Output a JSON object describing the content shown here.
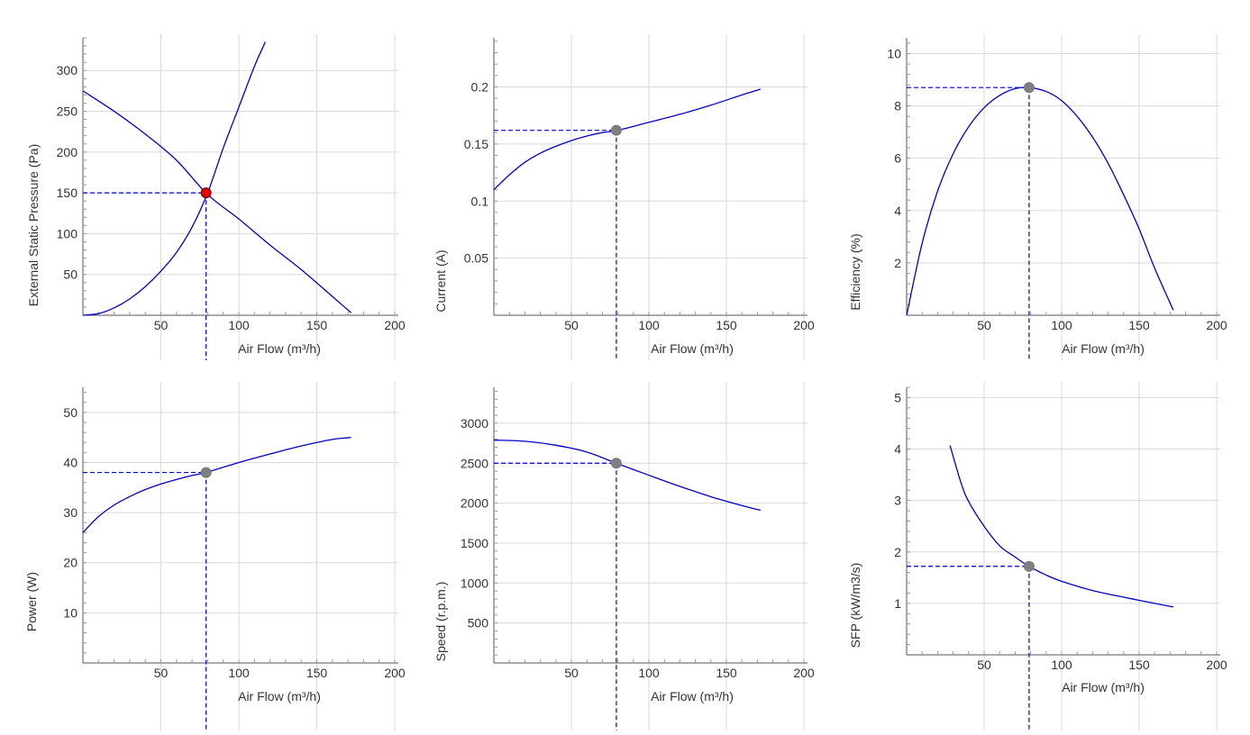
{
  "colors": {
    "curve": "#0000cc",
    "guide": "#0000cc",
    "grid": "#d9d9d9",
    "axis": "#555555",
    "operating_point_primary": "#e60000",
    "operating_point": "#7f7f7f"
  },
  "chart_data": [
    {
      "type": "line",
      "xlabel": "Air Flow (m³/h)",
      "ylabel": "External Static Pressure (Pa)",
      "xlim": [
        0,
        200
      ],
      "ylim": [
        0,
        340
      ],
      "xticks": [
        50,
        100,
        150,
        200
      ],
      "yticks": [
        50,
        100,
        150,
        200,
        250,
        300
      ],
      "x_tick_labels": [
        "50",
        "100",
        "150",
        "200"
      ],
      "y_tick_labels": [
        "50",
        "100",
        "150",
        "200",
        "250",
        "300"
      ],
      "grid": true,
      "series": [
        {
          "x": [
            0,
            20,
            40,
            60,
            80,
            100,
            120,
            140,
            160,
            172
          ],
          "values": [
            275,
            250,
            222,
            190,
            148,
            118,
            86,
            56,
            23,
            3
          ]
        },
        {
          "x": [
            0,
            10,
            20,
            30,
            40,
            50,
            60,
            70,
            80,
            90,
            100,
            110,
            117
          ],
          "values": [
            0,
            2,
            9,
            20,
            35,
            54,
            77,
            108,
            150,
            205,
            255,
            305,
            335
          ]
        }
      ],
      "operating_point": {
        "x": 79,
        "y": 150
      }
    },
    {
      "type": "line",
      "xlabel": "Air Flow (m³/h)",
      "ylabel": "Current (A)",
      "xlim": [
        0,
        200
      ],
      "ylim": [
        0,
        0.243
      ],
      "xticks": [
        50,
        100,
        150,
        200
      ],
      "yticks": [
        0.05,
        0.1,
        0.15,
        0.2
      ],
      "x_tick_labels": [
        "50",
        "100",
        "150",
        "200"
      ],
      "y_tick_labels": [
        "0.05",
        "0.1",
        "0.15",
        "0.2"
      ],
      "grid": true,
      "series": [
        {
          "x": [
            0,
            10,
            20,
            30,
            40,
            50,
            60,
            70,
            80,
            100,
            120,
            140,
            160,
            172
          ],
          "values": [
            0.11,
            0.123,
            0.134,
            0.142,
            0.148,
            0.153,
            0.157,
            0.16,
            0.162,
            0.169,
            0.176,
            0.184,
            0.193,
            0.198
          ]
        }
      ],
      "operating_point": {
        "x": 79,
        "y": 0.162
      }
    },
    {
      "type": "line",
      "xlabel": "Air Flow (m³/h)",
      "ylabel": "Efficiency (%)",
      "xlim": [
        0,
        200
      ],
      "ylim": [
        0,
        10.6
      ],
      "xticks": [
        50,
        100,
        150,
        200
      ],
      "yticks": [
        2,
        4,
        6,
        8,
        10
      ],
      "x_tick_labels": [
        "50",
        "100",
        "150",
        "200"
      ],
      "y_tick_labels": [
        "2",
        "4",
        "6",
        "8",
        "10"
      ],
      "grid": true,
      "series": [
        {
          "x": [
            0,
            10,
            20,
            30,
            40,
            50,
            60,
            70,
            79,
            90,
            100,
            110,
            120,
            130,
            140,
            150,
            160,
            172
          ],
          "values": [
            0,
            2.75,
            4.75,
            6.17,
            7.2,
            7.93,
            8.4,
            8.66,
            8.7,
            8.55,
            8.2,
            7.6,
            6.8,
            5.8,
            4.6,
            3.3,
            1.8,
            0.2
          ]
        }
      ],
      "operating_point": {
        "x": 79,
        "y": 8.7
      }
    },
    {
      "type": "line",
      "xlabel": "Air Flow (m³/h)",
      "ylabel": "Power (W)",
      "xlim": [
        0,
        200
      ],
      "ylim": [
        0,
        55
      ],
      "xticks": [
        50,
        100,
        150,
        200
      ],
      "yticks": [
        10,
        20,
        30,
        40,
        50
      ],
      "x_tick_labels": [
        "50",
        "100",
        "150",
        "200"
      ],
      "y_tick_labels": [
        "10",
        "20",
        "30",
        "40",
        "50"
      ],
      "grid": true,
      "series": [
        {
          "x": [
            0,
            10,
            20,
            30,
            40,
            50,
            60,
            70,
            79,
            100,
            120,
            140,
            160,
            172
          ],
          "values": [
            26,
            29.2,
            31.5,
            33.2,
            34.6,
            35.7,
            36.6,
            37.4,
            38,
            40,
            41.7,
            43.3,
            44.6,
            45
          ]
        }
      ],
      "operating_point": {
        "x": 79,
        "y": 38
      }
    },
    {
      "type": "line",
      "xlabel": "Air Flow (m³/h)",
      "ylabel": "Speed (r.p.m.)",
      "xlim": [
        0,
        200
      ],
      "ylim": [
        0,
        3450
      ],
      "xticks": [
        50,
        100,
        150,
        200
      ],
      "yticks": [
        500,
        1000,
        1500,
        2000,
        2500,
        3000
      ],
      "x_tick_labels": [
        "50",
        "100",
        "150",
        "200"
      ],
      "y_tick_labels": [
        "500",
        "1000",
        "1500",
        "2000",
        "2500",
        "3000"
      ],
      "grid": true,
      "series": [
        {
          "x": [
            0,
            20,
            40,
            60,
            79,
            100,
            120,
            140,
            160,
            172
          ],
          "values": [
            2790,
            2775,
            2725,
            2640,
            2500,
            2350,
            2210,
            2080,
            1970,
            1910
          ]
        }
      ],
      "operating_point": {
        "x": 79,
        "y": 2500
      }
    },
    {
      "type": "line",
      "xlabel": "Air Flow (m³/h)",
      "ylabel": "SFP (kW/m3/s)",
      "xlim": [
        0,
        200
      ],
      "ylim": [
        0,
        5.2
      ],
      "xticks": [
        50,
        100,
        150,
        200
      ],
      "yticks": [
        1,
        2,
        3,
        4,
        5
      ],
      "x_tick_labels": [
        "50",
        "100",
        "150",
        "200"
      ],
      "y_tick_labels": [
        "1",
        "2",
        "3",
        "4",
        "5"
      ],
      "grid": true,
      "series": [
        {
          "x": [
            28,
            35,
            40,
            50,
            60,
            70,
            79,
            90,
            100,
            120,
            140,
            160,
            172
          ],
          "values": [
            4.07,
            3.35,
            2.98,
            2.5,
            2.12,
            1.9,
            1.72,
            1.55,
            1.43,
            1.25,
            1.12,
            1.0,
            0.93
          ]
        }
      ],
      "operating_point": {
        "x": 79,
        "y": 1.72
      }
    }
  ]
}
